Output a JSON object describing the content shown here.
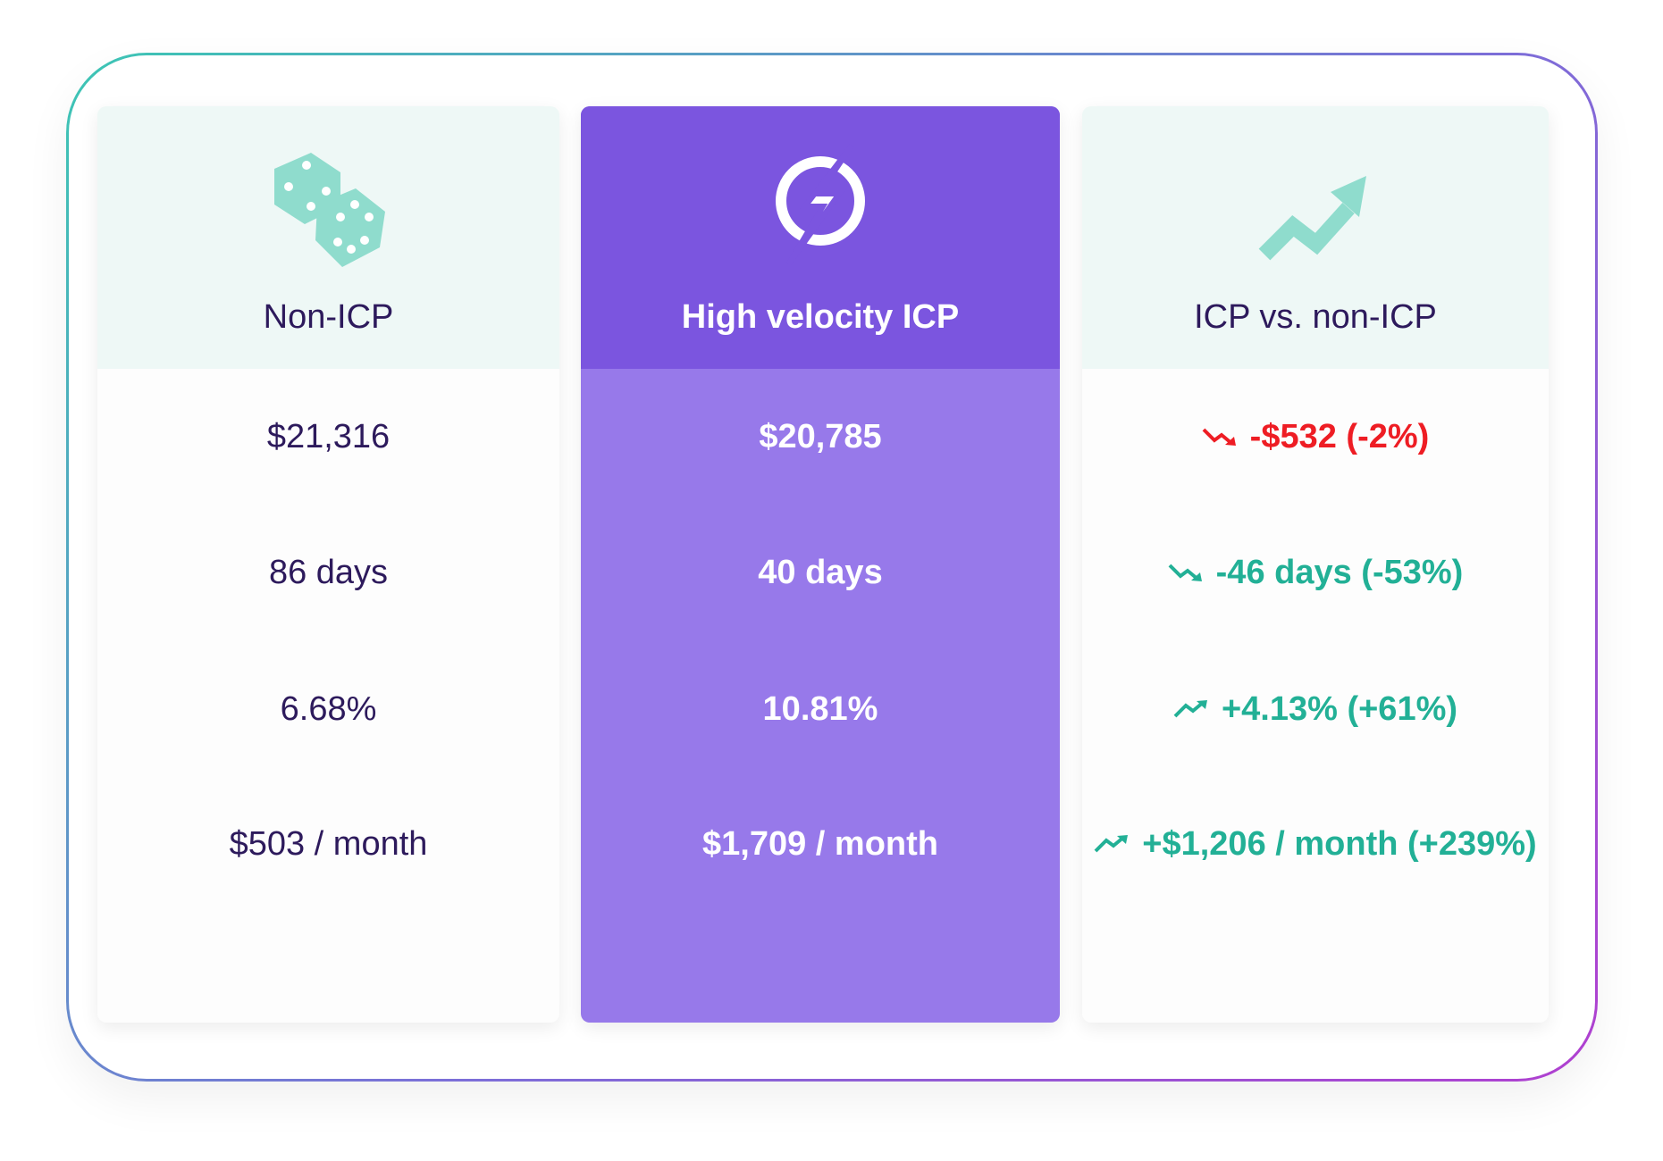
{
  "columns": [
    {
      "title": "Non-ICP",
      "rows": [
        "$21,316",
        "86 days",
        "6.68%",
        "$503 / month"
      ]
    },
    {
      "title": "High velocity ICP",
      "rows": [
        "$20,785",
        "40 days",
        "10.81%",
        "$1,709 / month"
      ]
    },
    {
      "title": "ICP vs. non-ICP",
      "rows": [
        "-$532 (-2%)",
        "-46 days (-53%)",
        "+4.13% (+61%)",
        "+$1,206 / month (+239%)"
      ]
    }
  ]
}
